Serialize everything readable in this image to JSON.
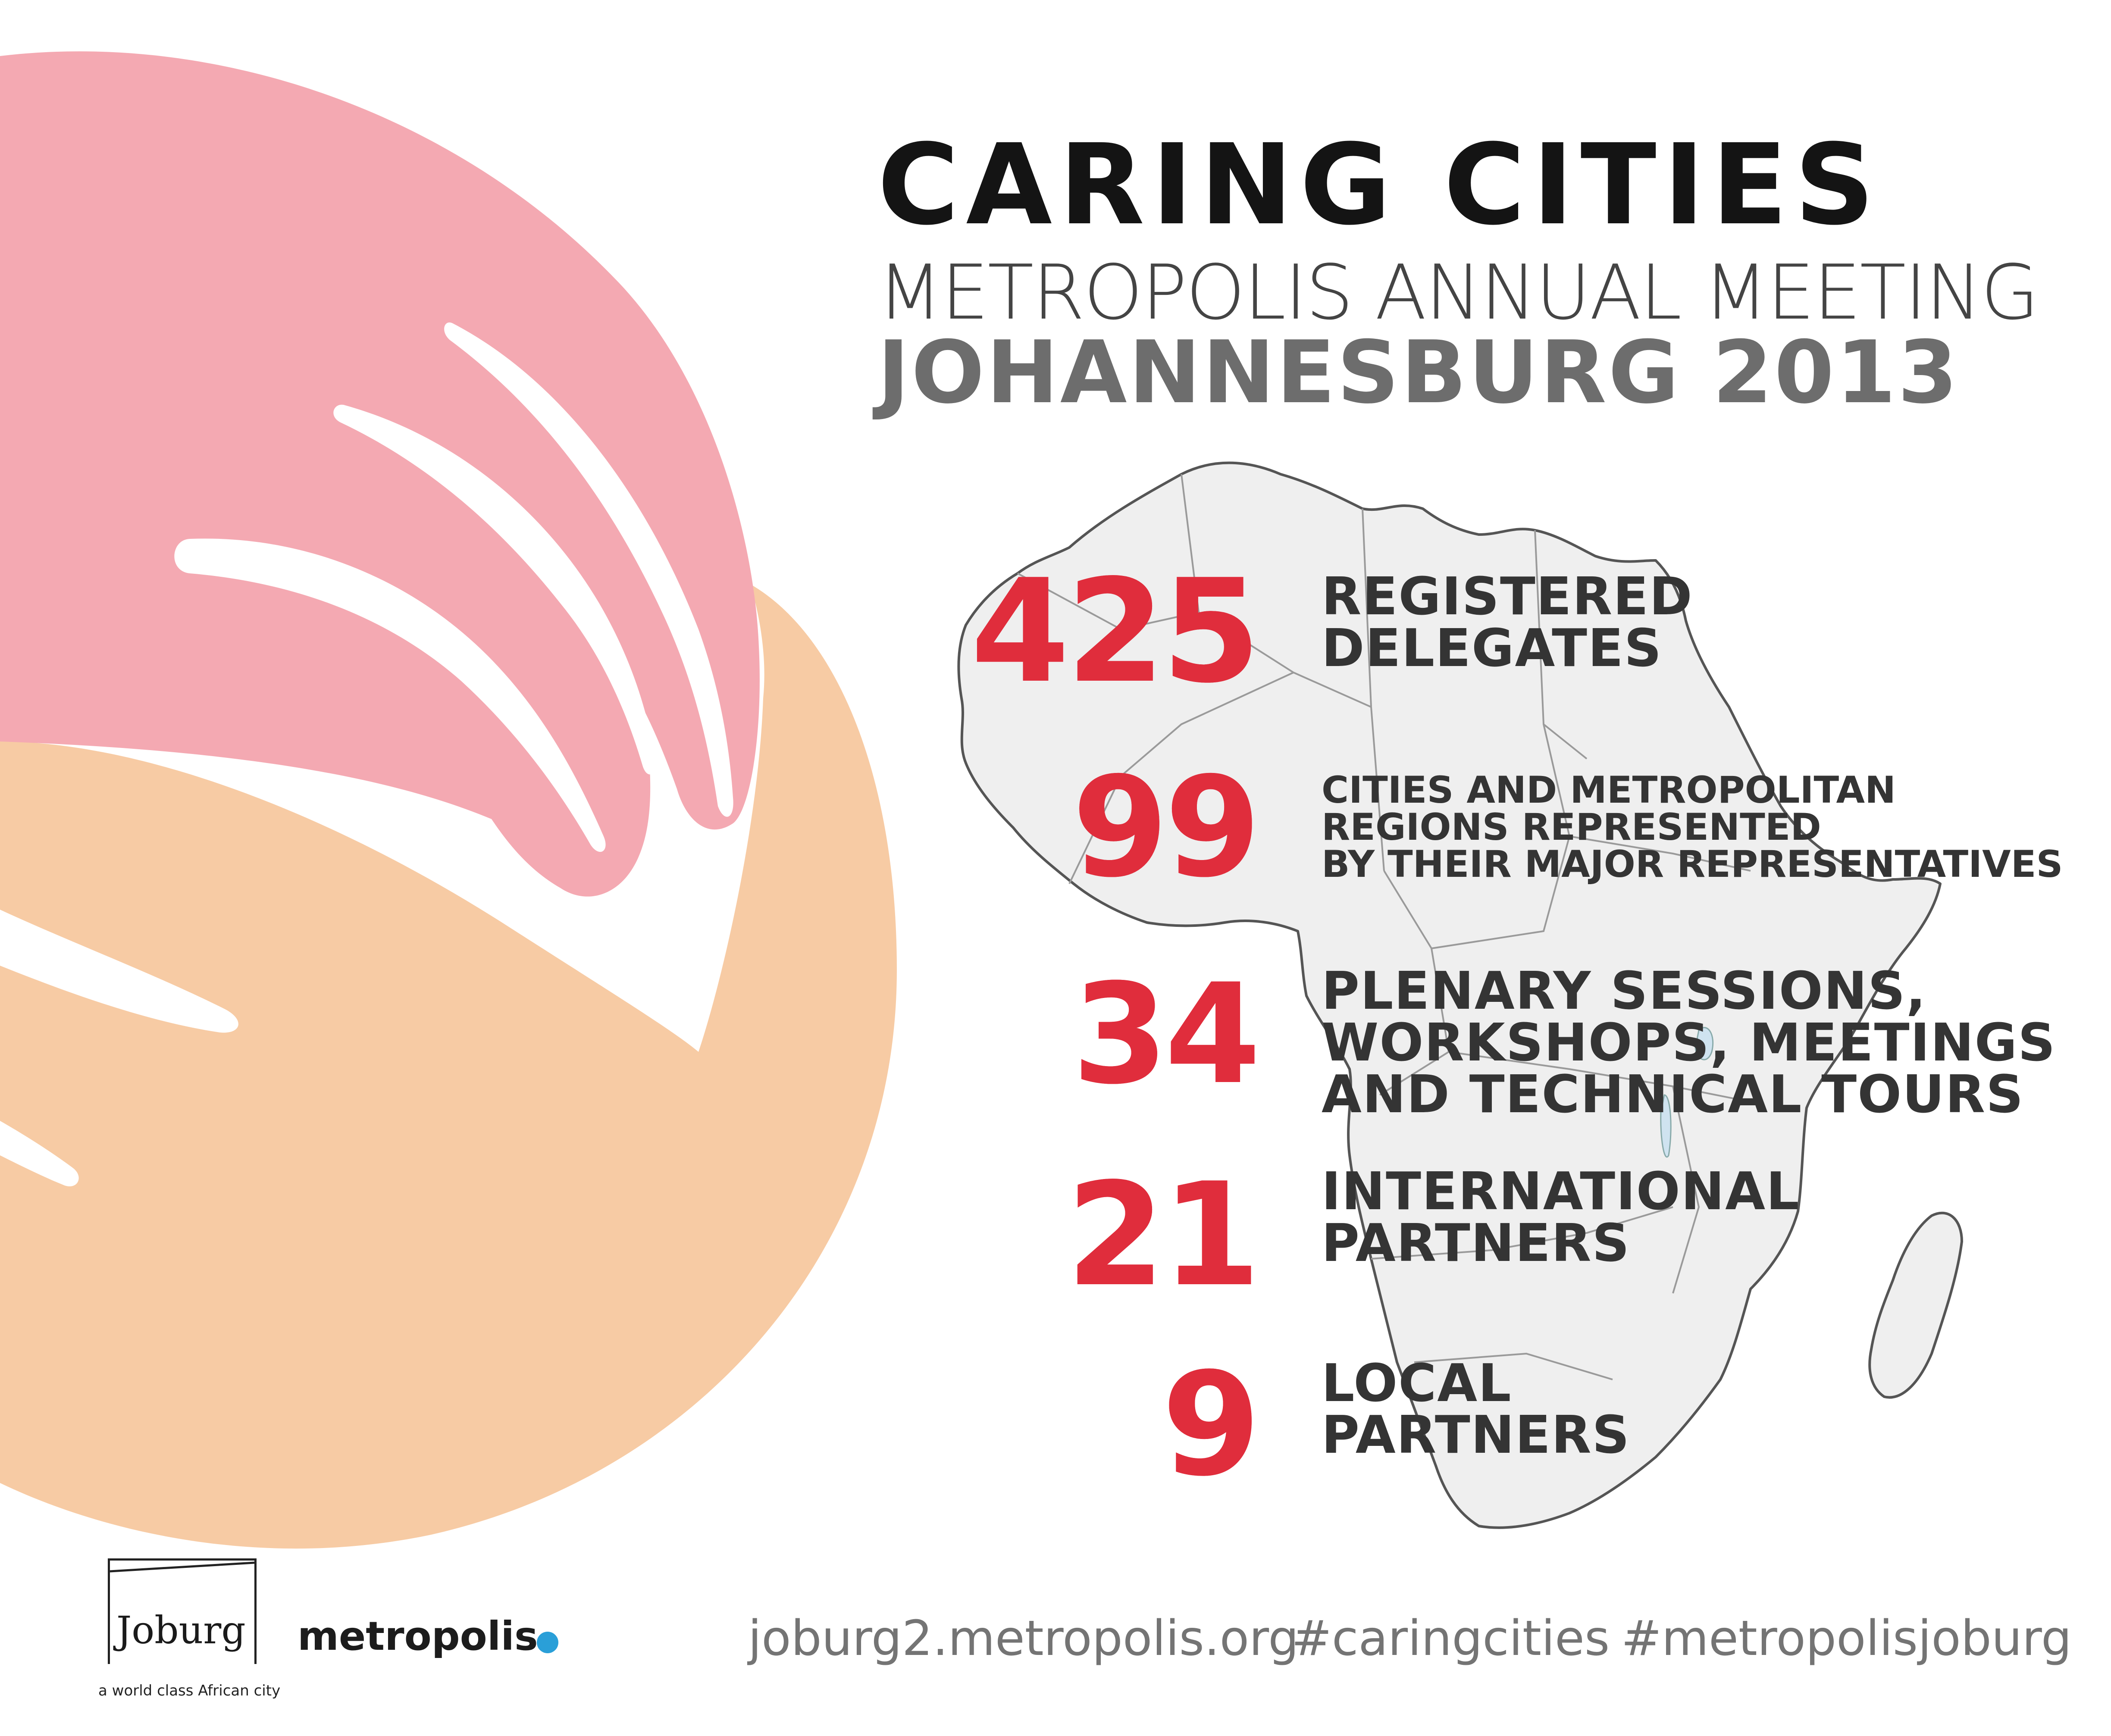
{
  "header": {
    "title": "CARING CITIES",
    "subtitle": "METROPOLIS ANNUAL MEETING",
    "location_year": "JOHANNESBURG 2013"
  },
  "stats": [
    {
      "number": "425",
      "label_lines": [
        "REGISTERED",
        "DELEGATES"
      ]
    },
    {
      "number": "99",
      "label_lines": [
        "CITIES AND METROPOLITAN",
        "REGIONS REPRESENTED",
        "BY THEIR MAJOR REPRESENTATIVES"
      ]
    },
    {
      "number": "34",
      "label_lines": [
        "PLENARY SESSIONS,",
        "WORKSHOPS, MEETINGS",
        "AND TECHNICAL TOURS"
      ]
    },
    {
      "number": "21",
      "label_lines": [
        "INTERNATIONAL",
        "PARTNERS"
      ]
    },
    {
      "number": "9",
      "label_lines": [
        "LOCAL",
        "PARTNERS"
      ]
    }
  ],
  "footer": {
    "website": "joburg2.metropolis.org",
    "hashtag_1": "#caringcities",
    "hashtag_2": "#metropolisjoburg"
  },
  "logos": {
    "joburg_word": "Joburg",
    "joburg_tagline": "a world class African city",
    "metropolis_word": "metropolis"
  },
  "colors": {
    "accent_red": "#e02d3c",
    "hand_pink": "#f4a9b2",
    "hand_peach": "#f7cba4",
    "map_fill": "#efefef",
    "metropolis_dot": "#2a9fd8"
  },
  "icons": {
    "decor_left": "hands-icon",
    "map": "africa-map-icon"
  }
}
